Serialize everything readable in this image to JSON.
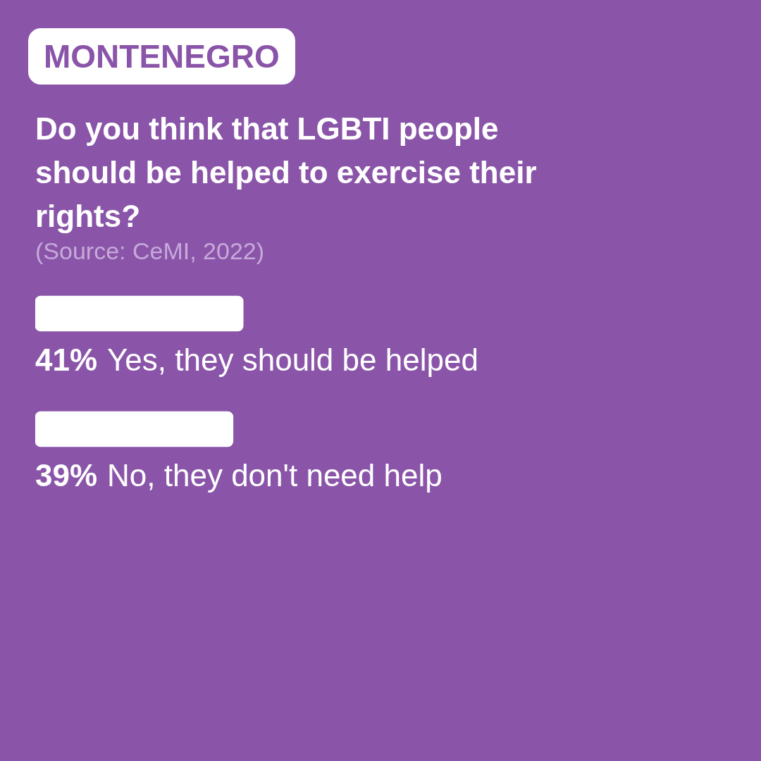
{
  "chart_data": {
    "type": "bar",
    "orientation": "horizontal",
    "title": "MONTENEGRO",
    "subtitle": "Do you think that LGBTI people should be helped to exercise their rights?",
    "annotations": [
      "(Source: CeMI, 2022)"
    ],
    "categories": [
      "Yes, they should be helped",
      "No, they don't need help"
    ],
    "values": [
      41,
      39
    ],
    "value_labels": [
      "41%",
      "39%"
    ],
    "color": "#ffffff"
  }
}
